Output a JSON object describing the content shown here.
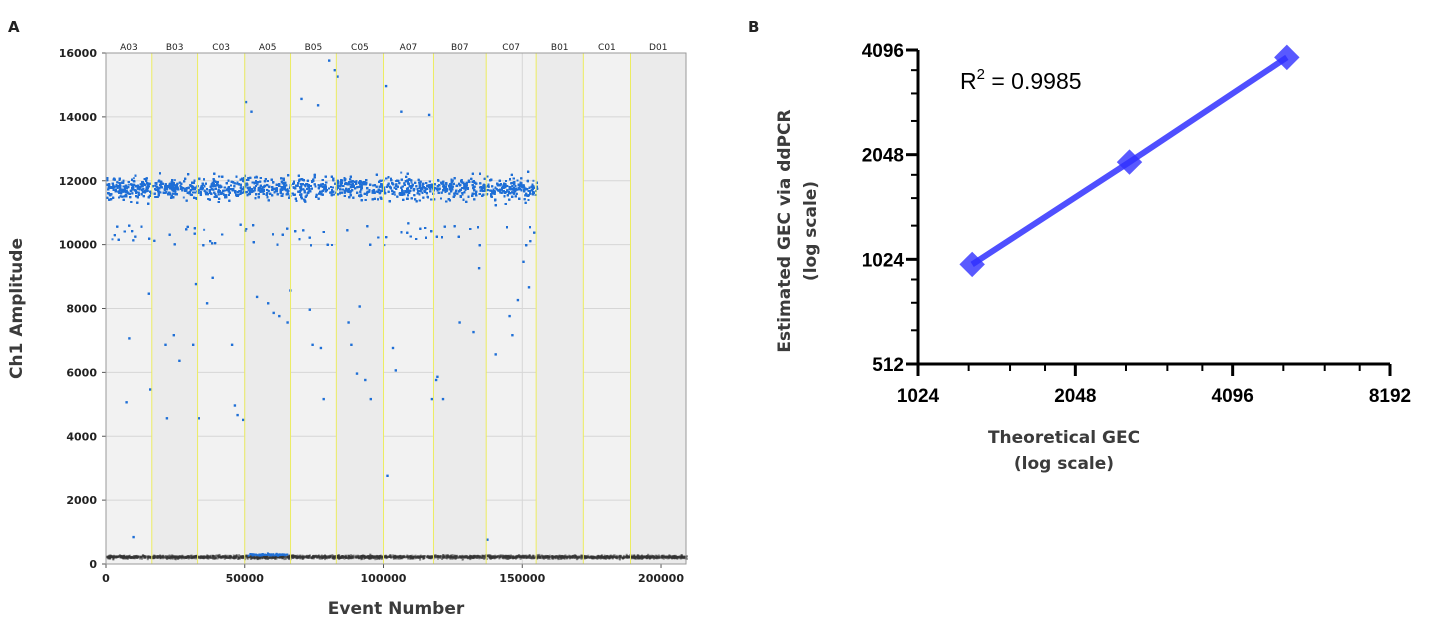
{
  "panel_a_letter": "A",
  "panel_b_letter": "B",
  "chart_data": [
    {
      "type": "scatter",
      "xlabel": "Event Number",
      "ylabel": "Ch1 Amplitude",
      "xlim": [
        0,
        209000
      ],
      "ylim": [
        0,
        16000
      ],
      "x_ticks": [
        0,
        50000,
        100000,
        150000,
        200000
      ],
      "y_ticks": [
        0,
        2000,
        4000,
        6000,
        8000,
        10000,
        12000,
        14000,
        16000
      ],
      "grid": true,
      "wells": [
        "A03",
        "B03",
        "C03",
        "A05",
        "B05",
        "C05",
        "A07",
        "B07",
        "C07",
        "B01",
        "C01",
        "D01"
      ],
      "well_boundaries": [
        0,
        16500,
        33000,
        50000,
        66500,
        83000,
        100000,
        118000,
        137000,
        155000,
        172000,
        189000,
        209000
      ],
      "positive_band": {
        "x_range": [
          0,
          155000
        ],
        "center": 11800,
        "spread": [
          10500,
          13300
        ],
        "color": "#1f6fd6"
      },
      "negative_band": {
        "x_range": [
          0,
          209000
        ],
        "center": 250,
        "color": "#333333"
      },
      "outliers": [
        [
          8000,
          7100
        ],
        [
          9500,
          880
        ],
        [
          7000,
          5100
        ],
        [
          15500,
          5500
        ],
        [
          15000,
          8500
        ],
        [
          21000,
          6900
        ],
        [
          21500,
          4600
        ],
        [
          24000,
          7200
        ],
        [
          26000,
          6400
        ],
        [
          31000,
          6900
        ],
        [
          32000,
          8800
        ],
        [
          33000,
          4600
        ],
        [
          36000,
          8200
        ],
        [
          38000,
          9000
        ],
        [
          45000,
          6900
        ],
        [
          46000,
          5000
        ],
        [
          47000,
          4700
        ],
        [
          49000,
          4550
        ],
        [
          50000,
          14500
        ],
        [
          52000,
          14200
        ],
        [
          54000,
          8400
        ],
        [
          58000,
          8200
        ],
        [
          60000,
          7900
        ],
        [
          62000,
          7800
        ],
        [
          65000,
          7600
        ],
        [
          66000,
          8600
        ],
        [
          70000,
          14600
        ],
        [
          73000,
          8000
        ],
        [
          74000,
          6900
        ],
        [
          76000,
          14400
        ],
        [
          77000,
          6800
        ],
        [
          78000,
          5200
        ],
        [
          80000,
          15800
        ],
        [
          82000,
          15500
        ],
        [
          83000,
          15300
        ],
        [
          87000,
          7600
        ],
        [
          88000,
          6900
        ],
        [
          90000,
          6000
        ],
        [
          91000,
          8100
        ],
        [
          93000,
          5800
        ],
        [
          95000,
          5200
        ],
        [
          100500,
          15000
        ],
        [
          101000,
          2800
        ],
        [
          103000,
          6800
        ],
        [
          104000,
          6100
        ],
        [
          106000,
          14200
        ],
        [
          116000,
          14100
        ],
        [
          117000,
          5200
        ],
        [
          118500,
          5800
        ],
        [
          119000,
          5900
        ],
        [
          121000,
          5200
        ],
        [
          127000,
          7600
        ],
        [
          132000,
          7300
        ],
        [
          134000,
          9300
        ],
        [
          137000,
          800
        ],
        [
          140000,
          6600
        ],
        [
          145000,
          7800
        ],
        [
          146000,
          7200
        ],
        [
          148000,
          8300
        ],
        [
          150000,
          9500
        ],
        [
          152000,
          8700
        ]
      ]
    },
    {
      "type": "line",
      "xlabel": "Theoretical GEC\n(log scale)",
      "ylabel": "Estimated GEC via ddPCR\n(log scale)",
      "x_scale": "log2",
      "y_scale": "log2",
      "xlim": [
        1024,
        8192
      ],
      "ylim": [
        512,
        4096
      ],
      "x_ticks": [
        1024,
        2048,
        4096,
        8192
      ],
      "y_ticks": [
        512,
        1024,
        2048,
        4096
      ],
      "series": [
        {
          "x": [
            1300,
            2600,
            5200
          ],
          "y": [
            990,
            1950,
            3900
          ],
          "color": "#3030ff"
        }
      ],
      "annotation": "R² = 0.9985",
      "annotation_main": "R",
      "annotation_sup": "2",
      "annotation_rest": " = 0.9985"
    }
  ]
}
